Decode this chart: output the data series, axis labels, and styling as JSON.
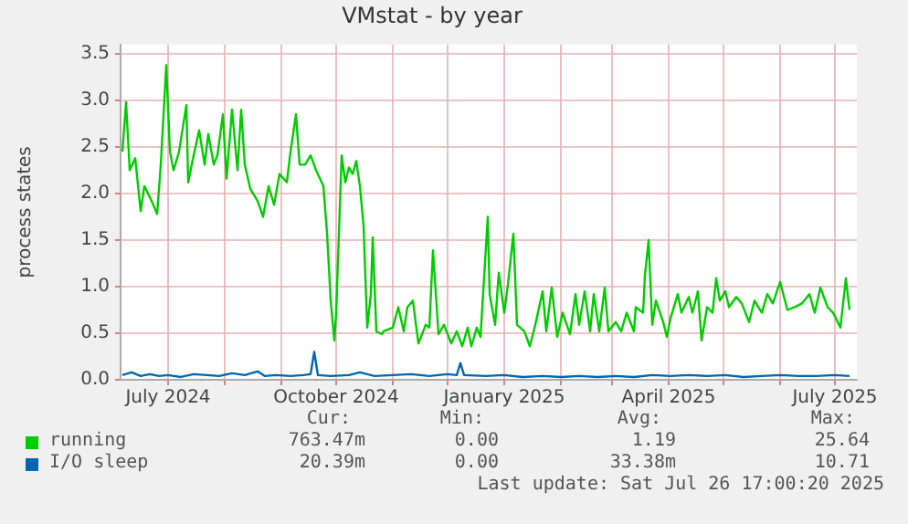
{
  "chart_data": {
    "type": "line",
    "title": "VMstat - by year",
    "ylabel": "process states",
    "xlim": [
      "2024-06-19",
      "2025-07-27"
    ],
    "xticks": [
      {
        "value": "2024-07-15",
        "label": "July 2024"
      },
      {
        "value": "2024-08-15",
        "label": null
      },
      {
        "value": "2024-09-15",
        "label": null
      },
      {
        "value": "2024-10-15",
        "label": "October 2024"
      },
      {
        "value": "2024-11-15",
        "label": null
      },
      {
        "value": "2024-12-15",
        "label": null
      },
      {
        "value": "2025-01-15",
        "label": "January 2025"
      },
      {
        "value": "2025-02-15",
        "label": null
      },
      {
        "value": "2025-03-15",
        "label": null
      },
      {
        "value": "2025-04-15",
        "label": "April 2025"
      },
      {
        "value": "2025-05-15",
        "label": null
      },
      {
        "value": "2025-06-15",
        "label": null
      },
      {
        "value": "2025-07-15",
        "label": "July 2025"
      }
    ],
    "ylim": [
      0,
      3.6
    ],
    "yticks": [
      {
        "value": 0,
        "label": "0.0"
      },
      0.5,
      {
        "value": 1,
        "label": "1.0"
      },
      1.5,
      {
        "value": 2,
        "label": "2.0"
      },
      2.5,
      {
        "value": 3,
        "label": "3.0"
      },
      3.5
    ],
    "grid": true,
    "legend": "bottom",
    "marker": "none",
    "series": [
      {
        "name": "running",
        "color": "#00cc00",
        "x": [
          "2024-06-20",
          "2024-06-22",
          "2024-06-24",
          "2024-06-27",
          "2024-06-30",
          "2024-07-02",
          "2024-07-06",
          "2024-07-09",
          "2024-07-11",
          "2024-07-14",
          "2024-07-16",
          "2024-07-18",
          "2024-07-21",
          "2024-07-25",
          "2024-07-26",
          "2024-07-29",
          "2024-08-01",
          "2024-08-04",
          "2024-08-06",
          "2024-08-09",
          "2024-08-11",
          "2024-08-14",
          "2024-08-16",
          "2024-08-19",
          "2024-08-22",
          "2024-08-24",
          "2024-08-26",
          "2024-08-29",
          "2024-09-02",
          "2024-09-05",
          "2024-09-08",
          "2024-09-11",
          "2024-09-14",
          "2024-09-18",
          "2024-09-20",
          "2024-09-23",
          "2024-09-25",
          "2024-09-28",
          "2024-10-01",
          "2024-10-04",
          "2024-10-08",
          "2024-10-10",
          "2024-10-12",
          "2024-10-14",
          "2024-10-15",
          "2024-10-18",
          "2024-10-20",
          "2024-10-22",
          "2024-10-24",
          "2024-10-26",
          "2024-10-28",
          "2024-10-30",
          "2024-11-01",
          "2024-11-03",
          "2024-11-04",
          "2024-11-06",
          "2024-11-09",
          "2024-11-10",
          "2024-11-15",
          "2024-11-18",
          "2024-11-21",
          "2024-11-23",
          "2024-11-26",
          "2024-11-29",
          "2024-12-03",
          "2024-12-05",
          "2024-12-07",
          "2024-12-10",
          "2024-12-13",
          "2024-12-17",
          "2024-12-20",
          "2024-12-23",
          "2024-12-26",
          "2024-12-28",
          "2024-12-31",
          "2025-01-02",
          "2025-01-06",
          "2025-01-07",
          "2025-01-10",
          "2025-01-12",
          "2025-01-15",
          "2025-01-17",
          "2025-01-20",
          "2025-01-22",
          "2025-01-26",
          "2025-01-29",
          "2025-02-01",
          "2025-02-05",
          "2025-02-07",
          "2025-02-10",
          "2025-02-13",
          "2025-02-16",
          "2025-02-20",
          "2025-02-23",
          "2025-02-25",
          "2025-02-28",
          "2025-03-03",
          "2025-03-05",
          "2025-03-08",
          "2025-03-11",
          "2025-03-13",
          "2025-03-17",
          "2025-03-20",
          "2025-03-23",
          "2025-03-27",
          "2025-03-28",
          "2025-04-01",
          "2025-04-02",
          "2025-04-04",
          "2025-04-06",
          "2025-04-08",
          "2025-04-12",
          "2025-04-14",
          "2025-04-16",
          "2025-04-20",
          "2025-04-22",
          "2025-04-26",
          "2025-04-28",
          "2025-05-01",
          "2025-05-03",
          "2025-05-06",
          "2025-05-09",
          "2025-05-11",
          "2025-05-13",
          "2025-05-16",
          "2025-05-18",
          "2025-05-22",
          "2025-05-25",
          "2025-05-29",
          "2025-06-01",
          "2025-06-05",
          "2025-06-08",
          "2025-06-11",
          "2025-06-15",
          "2025-06-19",
          "2025-06-23",
          "2025-06-27",
          "2025-07-01",
          "2025-07-04",
          "2025-07-07",
          "2025-07-11",
          "2025-07-14",
          "2025-07-18",
          "2025-07-21",
          "2025-07-23"
        ],
        "values": [
          2.45,
          2.98,
          2.25,
          2.38,
          1.81,
          2.08,
          1.92,
          1.78,
          2.31,
          3.38,
          2.45,
          2.25,
          2.45,
          2.95,
          2.12,
          2.41,
          2.68,
          2.31,
          2.64,
          2.31,
          2.41,
          2.85,
          2.16,
          2.9,
          2.25,
          2.9,
          2.31,
          2.05,
          1.92,
          1.75,
          2.08,
          1.88,
          2.21,
          2.12,
          2.45,
          2.85,
          2.31,
          2.31,
          2.41,
          2.25,
          2.08,
          1.58,
          0.85,
          0.42,
          0.72,
          2.41,
          2.12,
          2.28,
          2.21,
          2.35,
          2.08,
          1.65,
          0.56,
          0.92,
          1.53,
          0.52,
          0.49,
          0.52,
          0.56,
          0.78,
          0.52,
          0.78,
          0.85,
          0.39,
          0.59,
          0.56,
          1.39,
          0.49,
          0.59,
          0.39,
          0.52,
          0.36,
          0.56,
          0.36,
          0.56,
          0.46,
          1.75,
          0.92,
          0.59,
          1.15,
          0.72,
          1.02,
          1.57,
          0.59,
          0.52,
          0.36,
          0.59,
          0.95,
          0.52,
          0.99,
          0.46,
          0.72,
          0.49,
          0.92,
          0.59,
          0.95,
          0.52,
          0.92,
          0.52,
          0.99,
          0.52,
          0.62,
          0.52,
          0.72,
          0.52,
          0.78,
          0.72,
          1.12,
          1.5,
          0.59,
          0.85,
          0.62,
          0.46,
          0.66,
          0.92,
          0.72,
          0.89,
          0.72,
          0.95,
          0.42,
          0.78,
          0.72,
          1.09,
          0.85,
          0.95,
          0.78,
          0.89,
          0.82,
          0.62,
          0.85,
          0.72,
          0.92,
          0.82,
          1.05,
          0.75,
          0.78,
          0.82,
          0.92,
          0.72,
          0.99,
          0.78,
          0.72,
          0.56,
          1.09,
          0.75
        ]
      },
      {
        "name": "I/O sleep",
        "color": "#0066b3",
        "x": [
          "2024-06-20",
          "2024-06-25",
          "2024-06-30",
          "2024-07-05",
          "2024-07-10",
          "2024-07-15",
          "2024-07-22",
          "2024-07-29",
          "2024-08-05",
          "2024-08-12",
          "2024-08-19",
          "2024-08-26",
          "2024-09-02",
          "2024-09-06",
          "2024-09-12",
          "2024-09-20",
          "2024-09-27",
          "2024-10-01",
          "2024-10-03",
          "2024-10-05",
          "2024-10-12",
          "2024-10-22",
          "2024-10-28",
          "2024-11-05",
          "2024-11-15",
          "2024-11-25",
          "2024-12-05",
          "2024-12-15",
          "2024-12-20",
          "2024-12-22",
          "2024-12-24",
          "2025-01-05",
          "2025-01-15",
          "2025-01-25",
          "2025-02-05",
          "2025-02-15",
          "2025-02-25",
          "2025-03-07",
          "2025-03-17",
          "2025-03-27",
          "2025-04-06",
          "2025-04-16",
          "2025-04-26",
          "2025-05-06",
          "2025-05-16",
          "2025-05-26",
          "2025-06-05",
          "2025-06-15",
          "2025-06-25",
          "2025-07-05",
          "2025-07-15",
          "2025-07-23"
        ],
        "values": [
          0.05,
          0.08,
          0.04,
          0.06,
          0.04,
          0.05,
          0.03,
          0.06,
          0.05,
          0.04,
          0.07,
          0.05,
          0.09,
          0.04,
          0.05,
          0.04,
          0.05,
          0.06,
          0.3,
          0.05,
          0.04,
          0.05,
          0.08,
          0.04,
          0.05,
          0.06,
          0.04,
          0.06,
          0.05,
          0.18,
          0.05,
          0.04,
          0.05,
          0.03,
          0.04,
          0.03,
          0.04,
          0.03,
          0.04,
          0.03,
          0.05,
          0.04,
          0.05,
          0.04,
          0.05,
          0.03,
          0.04,
          0.05,
          0.04,
          0.04,
          0.05,
          0.04
        ]
      }
    ],
    "annotations": [
      "Cur:",
      "Min:",
      "Avg:",
      "Max:",
      "763.47m",
      "0.00",
      "1.19",
      "25.64",
      "20.39m",
      "0.00",
      "33.38m",
      "10.71",
      "Last update: Sat Jul 26 17:00:20 2025"
    ]
  }
}
